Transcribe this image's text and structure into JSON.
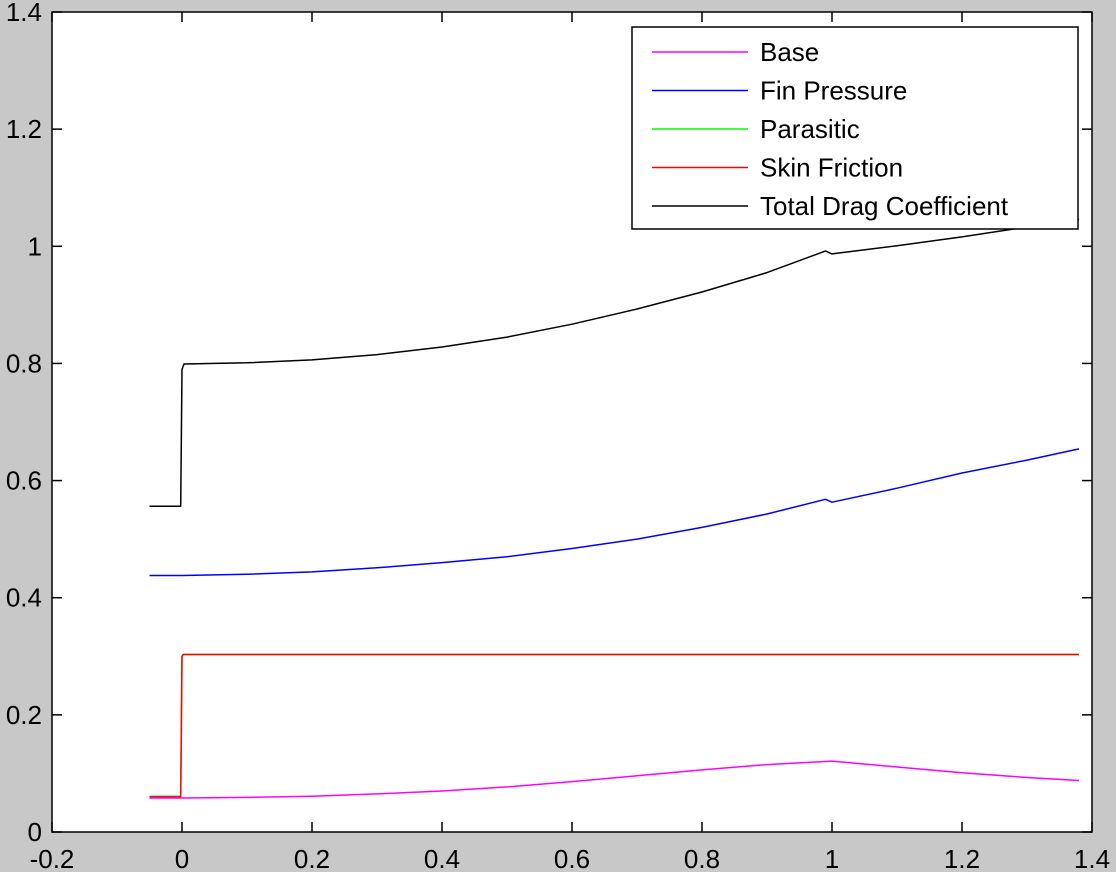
{
  "chart_data": {
    "type": "line",
    "title": "",
    "xlabel": "",
    "ylabel": "",
    "xlim": [
      -0.2,
      1.4
    ],
    "ylim": [
      0,
      1.4
    ],
    "xticks": [
      "-0.2",
      "0",
      "0.2",
      "0.4",
      "0.6",
      "0.8",
      "1",
      "1.2",
      "1.4"
    ],
    "yticks": [
      "0",
      "0.2",
      "0.4",
      "0.6",
      "0.8",
      "1",
      "1.2",
      "1.4"
    ],
    "grid": false,
    "legend_position": "top-right",
    "series": [
      {
        "name": "Base",
        "color": "#ff00ff",
        "points": [
          [
            -0.05,
            0.058
          ],
          [
            0.0,
            0.058
          ],
          [
            0.1,
            0.059
          ],
          [
            0.2,
            0.061
          ],
          [
            0.3,
            0.065
          ],
          [
            0.4,
            0.07
          ],
          [
            0.5,
            0.077
          ],
          [
            0.6,
            0.086
          ],
          [
            0.7,
            0.096
          ],
          [
            0.8,
            0.106
          ],
          [
            0.9,
            0.115
          ],
          [
            1.0,
            0.121
          ],
          [
            1.1,
            0.111
          ],
          [
            1.2,
            0.101
          ],
          [
            1.3,
            0.093
          ],
          [
            1.38,
            0.088
          ]
        ]
      },
      {
        "name": "Fin Pressure",
        "color": "#0000ff",
        "points": [
          [
            -0.05,
            0.438
          ],
          [
            0.0,
            0.438
          ],
          [
            0.1,
            0.44
          ],
          [
            0.2,
            0.444
          ],
          [
            0.3,
            0.451
          ],
          [
            0.4,
            0.46
          ],
          [
            0.5,
            0.47
          ],
          [
            0.6,
            0.484
          ],
          [
            0.7,
            0.5
          ],
          [
            0.8,
            0.52
          ],
          [
            0.9,
            0.543
          ],
          [
            0.99,
            0.568
          ],
          [
            1.0,
            0.563
          ],
          [
            1.1,
            0.587
          ],
          [
            1.2,
            0.613
          ],
          [
            1.3,
            0.635
          ],
          [
            1.38,
            0.654
          ]
        ]
      },
      {
        "name": "Parasitic",
        "color": "#00ff00",
        "points": [
          [
            -0.05,
            0.061
          ],
          [
            -0.002,
            0.061
          ],
          [
            0.0,
            0.3
          ],
          [
            0.002,
            0.303
          ],
          [
            1.38,
            0.303
          ]
        ]
      },
      {
        "name": "Skin Friction",
        "color": "#ff0000",
        "points": [
          [
            -0.05,
            0.06
          ],
          [
            -0.002,
            0.06
          ],
          [
            0.0,
            0.3
          ],
          [
            0.002,
            0.303
          ],
          [
            1.38,
            0.303
          ]
        ]
      },
      {
        "name": "Total Drag Coefficient",
        "color": "#000000",
        "points": [
          [
            -0.05,
            0.556
          ],
          [
            -0.002,
            0.556
          ],
          [
            0.0,
            0.79
          ],
          [
            0.003,
            0.799
          ],
          [
            0.1,
            0.801
          ],
          [
            0.2,
            0.806
          ],
          [
            0.3,
            0.815
          ],
          [
            0.4,
            0.828
          ],
          [
            0.5,
            0.845
          ],
          [
            0.6,
            0.867
          ],
          [
            0.7,
            0.893
          ],
          [
            0.8,
            0.922
          ],
          [
            0.9,
            0.955
          ],
          [
            0.99,
            0.992
          ],
          [
            1.0,
            0.987
          ],
          [
            1.1,
            1.001
          ],
          [
            1.2,
            1.016
          ],
          [
            1.3,
            1.033
          ],
          [
            1.38,
            1.046
          ]
        ]
      }
    ]
  }
}
